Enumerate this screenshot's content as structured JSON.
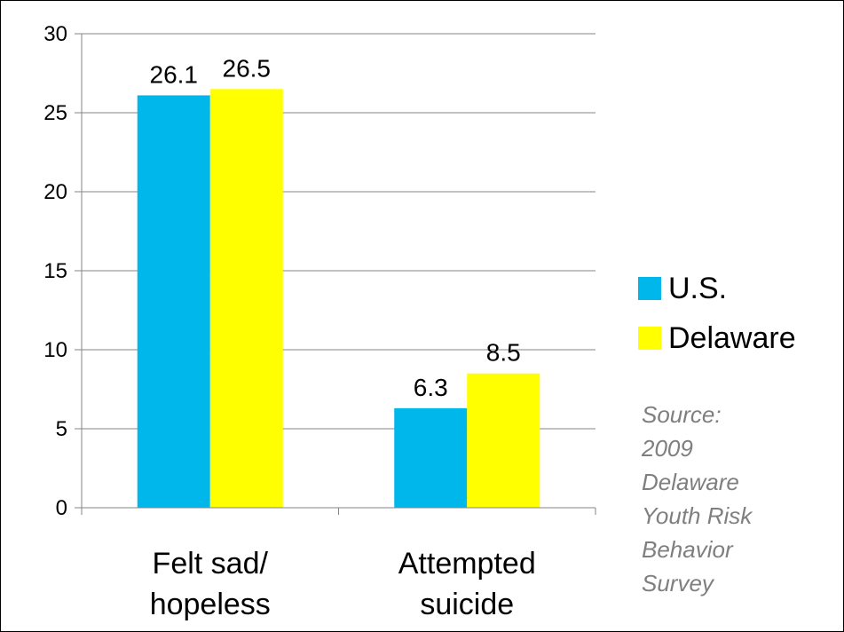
{
  "chart_data": {
    "type": "bar",
    "title": "",
    "xlabel": "",
    "ylabel": "",
    "categories": [
      "Felt sad/\nhopeless",
      "Attempted\nsuicide"
    ],
    "series": [
      {
        "name": "U.S.",
        "values": [
          26.1,
          6.3
        ],
        "color": "#00b7eb"
      },
      {
        "name": "Delaware",
        "values": [
          26.5,
          8.5
        ],
        "color": "#ffff00"
      }
    ],
    "data_labels": [
      [
        "26.1",
        "6.3"
      ],
      [
        "26.5",
        "8.5"
      ]
    ],
    "ylim": [
      0,
      30
    ],
    "y_ticks": [
      "0",
      "5",
      "10",
      "15",
      "20",
      "25",
      "30"
    ],
    "grid": true,
    "legend_position": "right"
  },
  "legend": {
    "us": "U.S.",
    "delaware": "Delaware"
  },
  "source_lines": [
    "Source:",
    "2009",
    "Delaware",
    "Youth Risk",
    "Behavior",
    "Survey"
  ],
  "colors": {
    "us": "#00b7eb",
    "delaware": "#ffff00",
    "gridline": "#868686",
    "source_text": "#7f7f7f"
  }
}
